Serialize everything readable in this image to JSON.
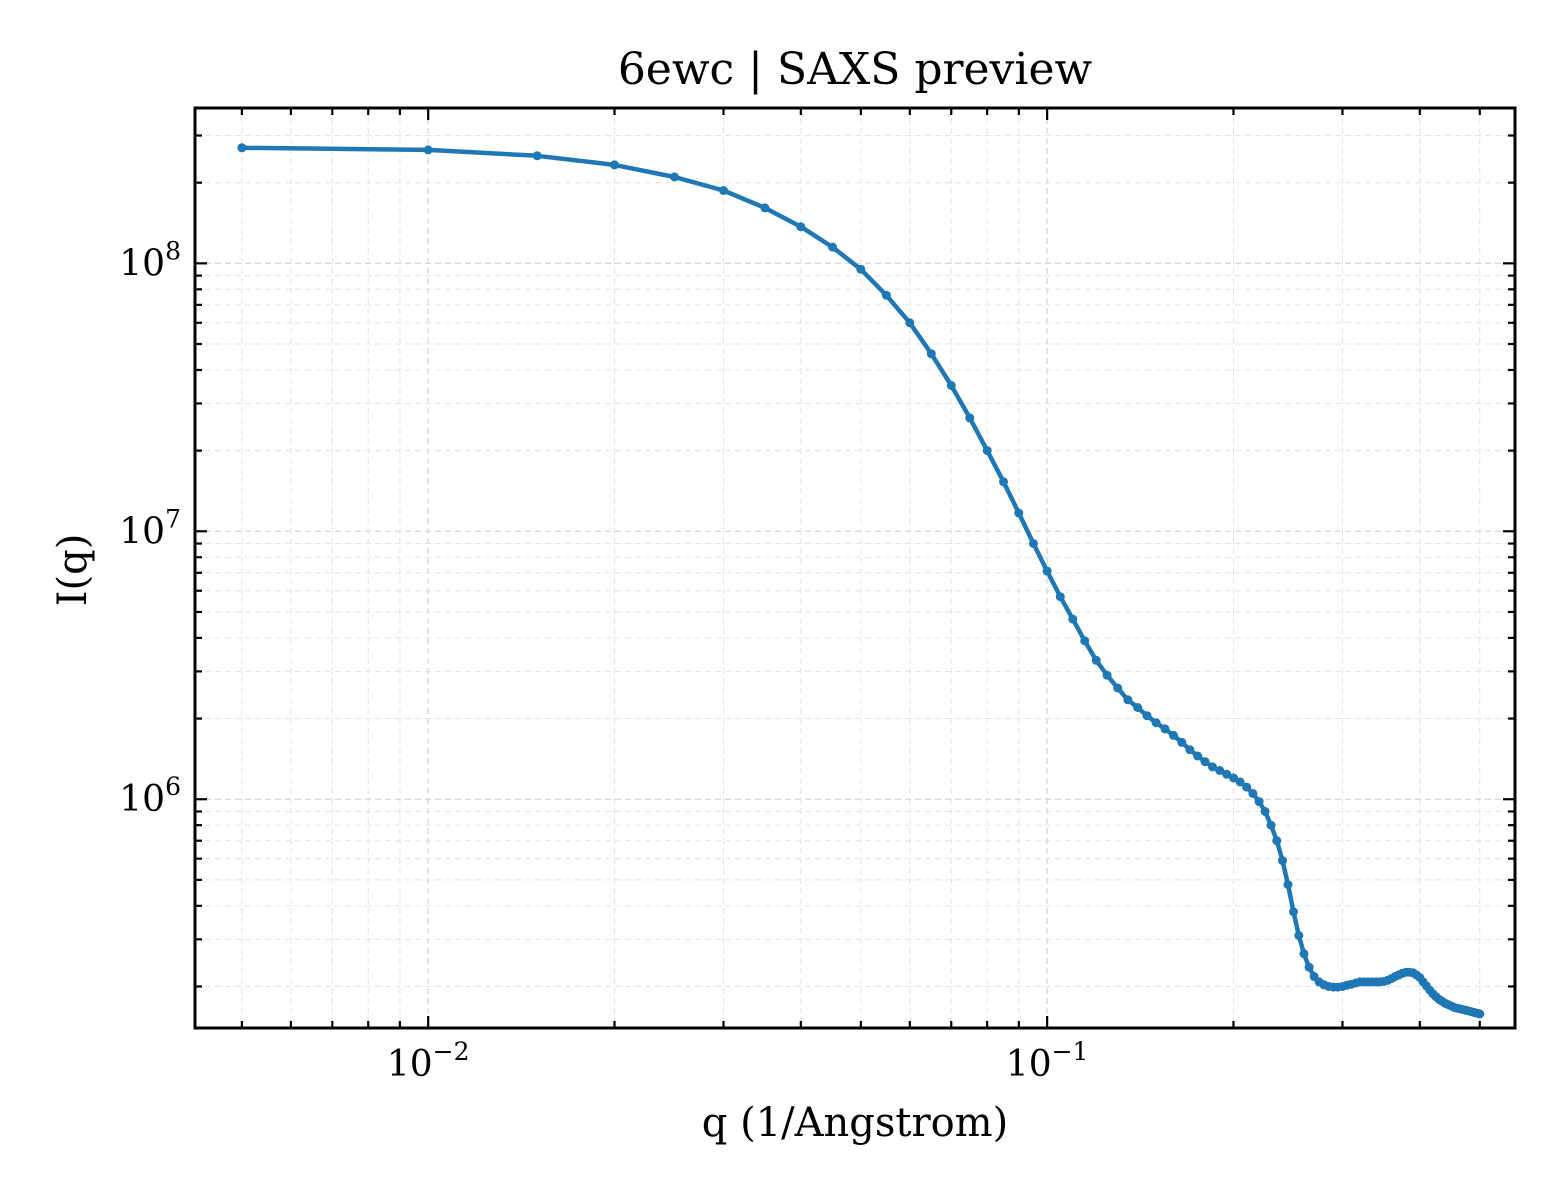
{
  "chart_data": {
    "type": "line",
    "title": "6ewc | SAXS preview",
    "xlabel": "q (1/Angstrom)",
    "ylabel": "I(q)",
    "xscale": "log",
    "yscale": "log",
    "xlim": [
      0.0042,
      0.57
    ],
    "ylim": [
      140000,
      380000000
    ],
    "grid": true,
    "legend": "none",
    "x_ticks": [
      {
        "value": 0.01,
        "base": "10",
        "exp": "−2"
      },
      {
        "value": 0.1,
        "base": "10",
        "exp": "−1"
      }
    ],
    "y_ticks": [
      {
        "value": 1000000,
        "base": "10",
        "exp": "6"
      },
      {
        "value": 10000000,
        "base": "10",
        "exp": "7"
      },
      {
        "value": 100000000,
        "base": "10",
        "exp": "8"
      }
    ],
    "series": [
      {
        "color": "#1f77b4",
        "x": [
          0.005,
          0.01,
          0.015,
          0.02,
          0.025,
          0.03,
          0.035,
          0.04,
          0.045,
          0.05,
          0.055,
          0.06,
          0.065,
          0.07,
          0.075,
          0.08,
          0.085,
          0.09,
          0.095,
          0.1,
          0.105,
          0.11,
          0.115,
          0.12,
          0.125,
          0.13,
          0.135,
          0.14,
          0.145,
          0.15,
          0.155,
          0.16,
          0.165,
          0.17,
          0.175,
          0.18,
          0.185,
          0.19,
          0.195,
          0.2,
          0.205,
          0.21,
          0.215,
          0.22,
          0.225,
          0.23,
          0.235,
          0.24,
          0.245,
          0.25,
          0.255,
          0.26,
          0.265,
          0.27,
          0.275,
          0.28,
          0.285,
          0.29,
          0.295,
          0.3,
          0.305,
          0.31,
          0.315,
          0.32,
          0.325,
          0.33,
          0.335,
          0.34,
          0.345,
          0.35,
          0.355,
          0.36,
          0.365,
          0.37,
          0.375,
          0.38,
          0.385,
          0.39,
          0.395,
          0.4,
          0.405,
          0.41,
          0.415,
          0.42,
          0.425,
          0.43,
          0.435,
          0.44,
          0.445,
          0.45,
          0.455,
          0.46,
          0.465,
          0.47,
          0.475,
          0.48,
          0.485,
          0.49,
          0.495,
          0.5
        ],
        "y": [
          270000000,
          265000000,
          252000000,
          233000000,
          210000000,
          187000000,
          161000000,
          137000000,
          115000000,
          95000000,
          76000000,
          60000000,
          46000000,
          35000000,
          26500000,
          20000000,
          15300000,
          11700000,
          9000000,
          7100000,
          5700000,
          4700000,
          3900000,
          3300000,
          2900000,
          2600000,
          2350000,
          2200000,
          2050000,
          1930000,
          1830000,
          1730000,
          1630000,
          1530000,
          1450000,
          1380000,
          1320000,
          1280000,
          1240000,
          1200000,
          1160000,
          1110000,
          1050000,
          980000,
          900000,
          800000,
          700000,
          590000,
          480000,
          380000,
          310000,
          265000,
          236000,
          218000,
          208000,
          203000,
          200000,
          199000,
          199000,
          200000,
          202000,
          204000,
          206000,
          208000,
          208000,
          208000,
          208000,
          208000,
          208000,
          209000,
          211000,
          214000,
          218000,
          221000,
          224000,
          226000,
          226000,
          225000,
          221000,
          216000,
          208000,
          201000,
          194000,
          188000,
          183000,
          179000,
          176000,
          173000,
          171000,
          169000,
          167000,
          166000,
          165000,
          164000,
          163000,
          162000,
          161000,
          160000,
          159000,
          158000
        ]
      }
    ]
  }
}
